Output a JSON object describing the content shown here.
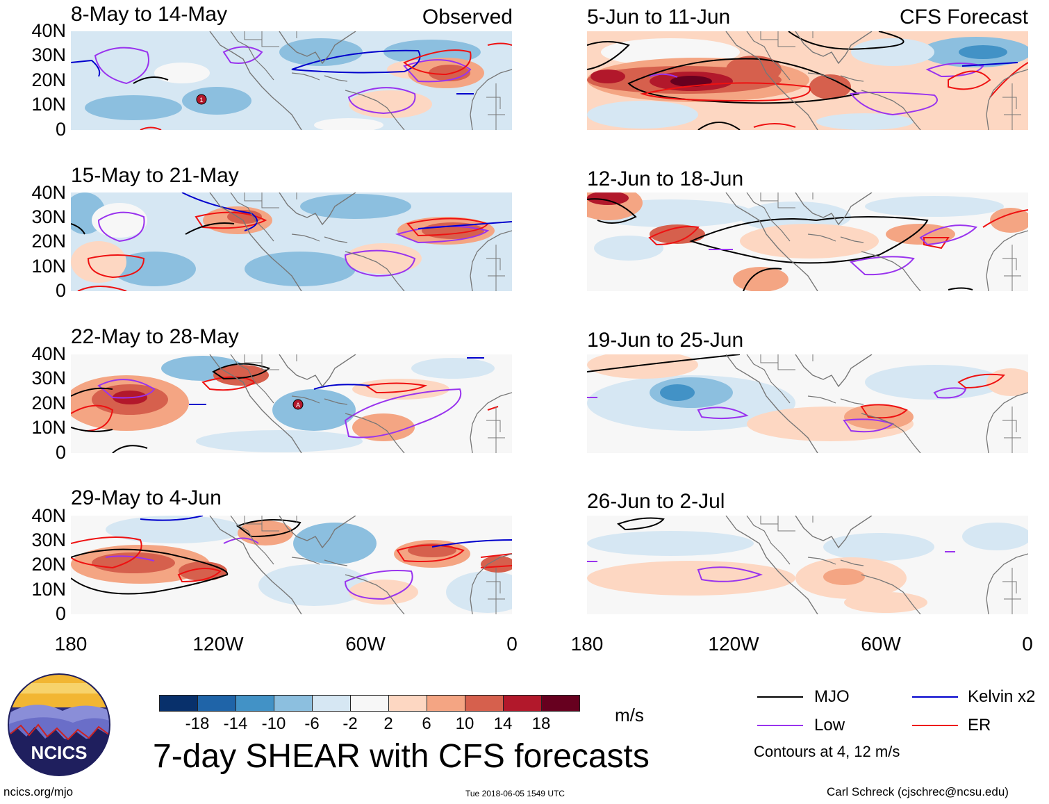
{
  "left_column_tag": "Observed",
  "right_column_tag": "CFS Forecast",
  "left_panels": [
    {
      "title": "8-May to 14-May"
    },
    {
      "title": "15-May to 21-May"
    },
    {
      "title": "22-May to 28-May"
    },
    {
      "title": "29-May to 4-Jun"
    }
  ],
  "right_panels": [
    {
      "title": "5-Jun to 11-Jun"
    },
    {
      "title": "12-Jun to 18-Jun"
    },
    {
      "title": "19-Jun to 25-Jun"
    },
    {
      "title": "26-Jun to 2-Jul"
    }
  ],
  "y_ticks": [
    "40N",
    "30N",
    "20N",
    "10N",
    "0"
  ],
  "x_ticks": [
    "180",
    "120W",
    "60W",
    "0"
  ],
  "storm_markers": {
    "first": "1",
    "second": "A"
  },
  "colorbar": {
    "colors": [
      "#08306b",
      "#1f64a8",
      "#4292c6",
      "#8cbfdf",
      "#d6e7f3",
      "#f7f7f7",
      "#fdd7c2",
      "#f4a583",
      "#d6604d",
      "#b2182b",
      "#67001f"
    ],
    "labels": [
      "-18",
      "-14",
      "-10",
      "-6",
      "-2",
      "2",
      "6",
      "10",
      "14",
      "18"
    ],
    "units": "m/s"
  },
  "legend": {
    "items": [
      {
        "label": "MJO",
        "color": "#000000"
      },
      {
        "label": "Kelvin x2",
        "color": "#0000cc"
      },
      {
        "label": "Low",
        "color": "#9933ee"
      },
      {
        "label": "ER",
        "color": "#ee1111"
      }
    ],
    "note": "Contours at 4, 12 m/s"
  },
  "main_title": "7-day SHEAR with CFS forecasts",
  "logo_text": "NCICS",
  "website": "ncics.org/mjo",
  "timestamp": "Tue 2018-06-05 1549 UTC",
  "credit": "Carl Schreck (cjschrec@ncsu.edu)"
}
